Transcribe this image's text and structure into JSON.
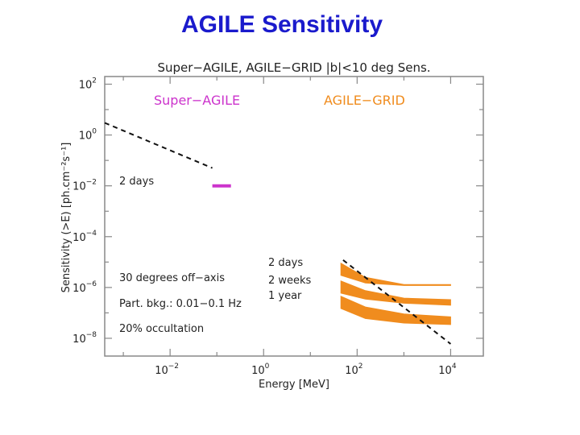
{
  "slide": {
    "title": "AGILE Sensitivity"
  },
  "chart_data": {
    "type": "line",
    "title": "Super−AGILE, AGILE−GRID |b|<10 deg Sens.",
    "xlabel": "Energy [MeV]",
    "ylabel": "Sensitivity (>E) [ph.cm⁻²s⁻¹]",
    "x_scale": "log",
    "y_scale": "log",
    "xlim": [
      0.0004,
      50000
    ],
    "ylim": [
      2e-09,
      200
    ],
    "x_ticks": [
      {
        "base": "10",
        "exp": "−2",
        "value": 0.01
      },
      {
        "base": "10",
        "exp": "0",
        "value": 1
      },
      {
        "base": "10",
        "exp": "2",
        "value": 100
      },
      {
        "base": "10",
        "exp": "4",
        "value": 10000
      }
    ],
    "y_ticks": [
      {
        "base": "10",
        "exp": "2",
        "value": 100
      },
      {
        "base": "10",
        "exp": "0",
        "value": 1
      },
      {
        "base": "10",
        "exp": "−2",
        "value": 0.01
      },
      {
        "base": "10",
        "exp": "−4",
        "value": 0.0001
      },
      {
        "base": "10",
        "exp": "−6",
        "value": 1e-06
      },
      {
        "base": "10",
        "exp": "−8",
        "value": 1e-08
      }
    ],
    "grid": false,
    "section_labels": [
      {
        "text": "Super−AGILE",
        "color": "#cc33cc"
      },
      {
        "text": "AGILE−GRID",
        "color": "#f08c1e"
      }
    ],
    "annotations": {
      "sa_2days": "2 days",
      "off_axis": "30 degrees off−axis",
      "bkg": "Part. bkg.: 0.01−0.1 Hz",
      "occult": "20% occultation",
      "ag_2days": "2 days",
      "ag_2weeks": "2 weeks",
      "ag_1year": "1 year"
    },
    "colors": {
      "super_agile": "#cc33cc",
      "agile_grid": "#f08c1e",
      "dashed": "#111111",
      "axis": "#888888"
    },
    "series": [
      {
        "style": "dashed",
        "x": [
          0.0004,
          0.08
        ],
        "y": [
          3,
          0.05
        ]
      },
      {
        "style": "solid",
        "x": [
          0.08,
          0.2
        ],
        "y": [
          0.01,
          0.01
        ]
      },
      {
        "style": "band",
        "x": [
          45,
          150,
          1000,
          10000
        ],
        "y_low": [
          3e-06,
          1.5e-06,
          1.2e-06,
          1.2e-06
        ],
        "y_high": [
          9e-06,
          2.5e-06,
          1.3e-06,
          1.3e-06
        ]
      },
      {
        "style": "band",
        "x": [
          45,
          150,
          1000,
          10000
        ],
        "y_low": [
          6e-07,
          3.5e-07,
          2.4e-07,
          2e-07
        ],
        "y_high": [
          1.8e-06,
          7.5e-07,
          3.8e-07,
          3.3e-07
        ]
      },
      {
        "style": "band",
        "x": [
          45,
          150,
          1000,
          10000
        ],
        "y_low": [
          1.5e-07,
          6e-08,
          4e-08,
          3.5e-08
        ],
        "y_high": [
          4.5e-07,
          1.7e-07,
          9e-08,
          7e-08
        ]
      },
      {
        "style": "dashed",
        "x": [
          50,
          10000
        ],
        "y": [
          1.2e-05,
          6e-09
        ]
      }
    ]
  }
}
